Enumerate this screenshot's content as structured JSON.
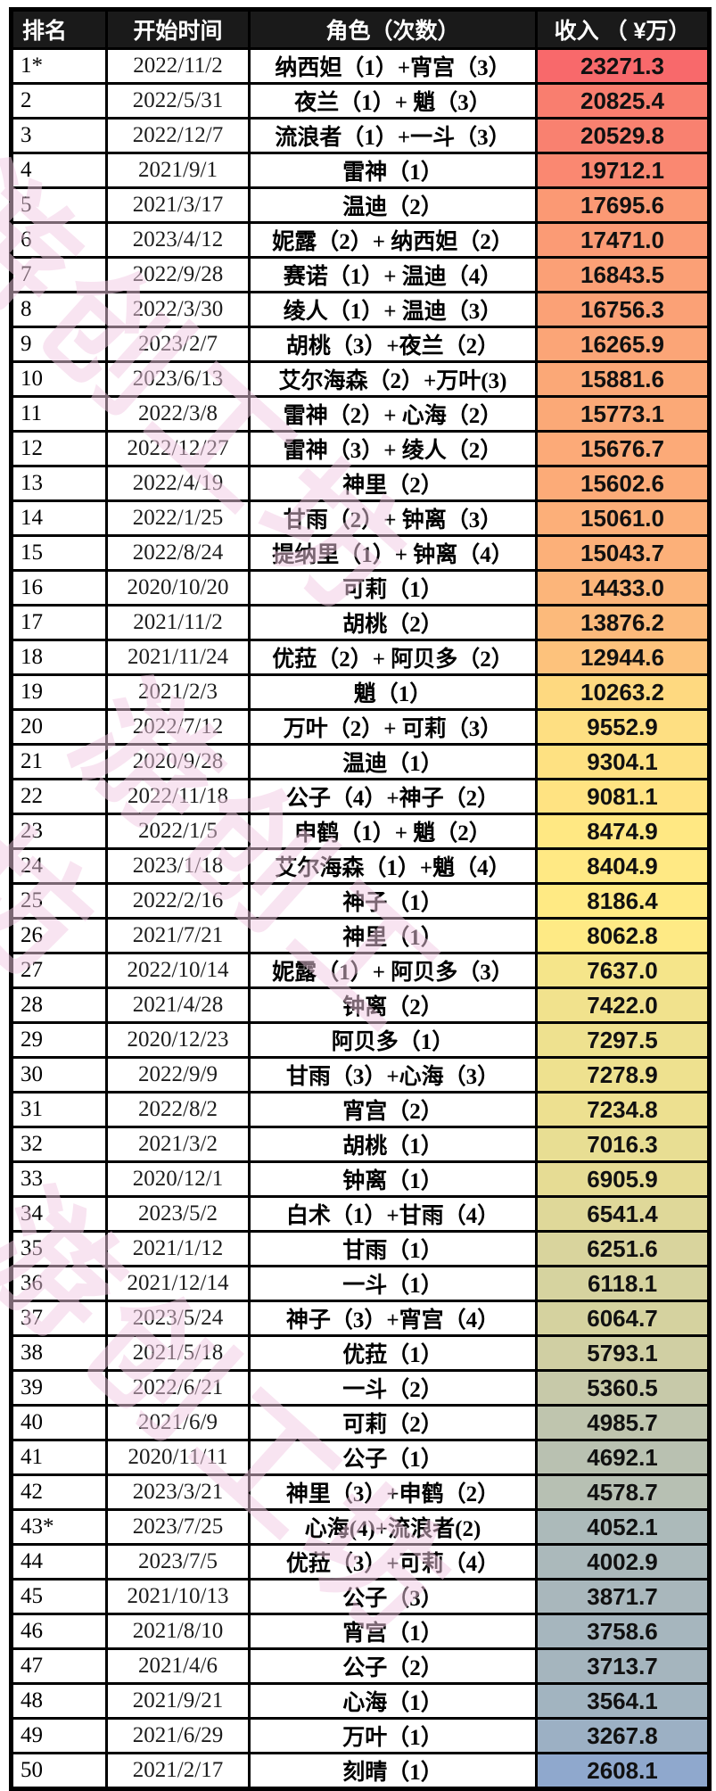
{
  "page": {
    "background": "#FFFFFF"
  },
  "watermark": {
    "text": "游创工坊",
    "color": "#F3CBE4"
  },
  "table": {
    "header_bg": "#1A1A1A",
    "header_text_color": "#FFFFFF",
    "columns": {
      "rank": "排名",
      "date": "开始时间",
      "role": "角色（次数）",
      "revenue": "收入 （ ¥万）"
    },
    "color_scale": {
      "max_color": "#F8696B",
      "mid_color": "#FFEB84",
      "min_color": "#8FA8CD",
      "midpoint": "median"
    }
  },
  "chart_data": {
    "type": "table",
    "title": "",
    "columns": [
      "排名",
      "开始时间",
      "角色（次数）",
      "收入 （ ¥万）"
    ],
    "rows": [
      {
        "rank": "1*",
        "date": "2022/11/2",
        "role": "纳西妲（1）+宵宫（3）",
        "revenue": 23271.3
      },
      {
        "rank": "2",
        "date": "2022/5/31",
        "role": "夜兰（1）+ 魈（3）",
        "revenue": 20825.4
      },
      {
        "rank": "3",
        "date": "2022/12/7",
        "role": "流浪者（1）+一斗（3）",
        "revenue": 20529.8
      },
      {
        "rank": "4",
        "date": "2021/9/1",
        "role": "雷神（1）",
        "revenue": 19712.1
      },
      {
        "rank": "5",
        "date": "2021/3/17",
        "role": "温迪（2）",
        "revenue": 17695.6
      },
      {
        "rank": "6",
        "date": "2023/4/12",
        "role": "妮露（2）+ 纳西妲（2）",
        "revenue": 17471.0
      },
      {
        "rank": "7",
        "date": "2022/9/28",
        "role": "赛诺（1）+ 温迪（4）",
        "revenue": 16843.5
      },
      {
        "rank": "8",
        "date": "2022/3/30",
        "role": "绫人（1）+ 温迪（3）",
        "revenue": 16756.3
      },
      {
        "rank": "9",
        "date": "2023/2/7",
        "role": "胡桃（3）+夜兰（2）",
        "revenue": 16265.9
      },
      {
        "rank": "10",
        "date": "2023/6/13",
        "role": "艾尔海森（2）+万叶(3)",
        "revenue": 15881.6
      },
      {
        "rank": "11",
        "date": "2022/3/8",
        "role": "雷神（2）+ 心海（2）",
        "revenue": 15773.1
      },
      {
        "rank": "12",
        "date": "2022/12/27",
        "role": "雷神（3）+ 绫人（2）",
        "revenue": 15676.7
      },
      {
        "rank": "13",
        "date": "2022/4/19",
        "role": "神里（2）",
        "revenue": 15602.6
      },
      {
        "rank": "14",
        "date": "2022/1/25",
        "role": "甘雨（2）+ 钟离（3）",
        "revenue": 15061.0
      },
      {
        "rank": "15",
        "date": "2022/8/24",
        "role": "提纳里（1）+ 钟离（4）",
        "revenue": 15043.7
      },
      {
        "rank": "16",
        "date": "2020/10/20",
        "role": "可莉（1）",
        "revenue": 14433.0
      },
      {
        "rank": "17",
        "date": "2021/11/2",
        "role": "胡桃（2）",
        "revenue": 13876.2
      },
      {
        "rank": "18",
        "date": "2021/11/24",
        "role": "优菈（2）+ 阿贝多（2）",
        "revenue": 12944.6
      },
      {
        "rank": "19",
        "date": "2021/2/3",
        "role": "魈（1）",
        "revenue": 10263.2
      },
      {
        "rank": "20",
        "date": "2022/7/12",
        "role": "万叶（2）+ 可莉（3）",
        "revenue": 9552.9
      },
      {
        "rank": "21",
        "date": "2020/9/28",
        "role": "温迪（1）",
        "revenue": 9304.1
      },
      {
        "rank": "22",
        "date": "2022/11/18",
        "role": "公子（4）+神子（2）",
        "revenue": 9081.1
      },
      {
        "rank": "23",
        "date": "2022/1/5",
        "role": "申鹤（1）+ 魈（2）",
        "revenue": 8474.9
      },
      {
        "rank": "24",
        "date": "2023/1/18",
        "role": "艾尔海森（1）+魈（4）",
        "revenue": 8404.9
      },
      {
        "rank": "25",
        "date": "2022/2/16",
        "role": "神子（1）",
        "revenue": 8186.4
      },
      {
        "rank": "26",
        "date": "2021/7/21",
        "role": "神里（1）",
        "revenue": 8062.8
      },
      {
        "rank": "27",
        "date": "2022/10/14",
        "role": "妮露（1）+ 阿贝多（3）",
        "revenue": 7637.0
      },
      {
        "rank": "28",
        "date": "2021/4/28",
        "role": "钟离（2）",
        "revenue": 7422.0
      },
      {
        "rank": "29",
        "date": "2020/12/23",
        "role": "阿贝多（1）",
        "revenue": 7297.5
      },
      {
        "rank": "30",
        "date": "2022/9/9",
        "role": "甘雨（3）+心海（3）",
        "revenue": 7278.9
      },
      {
        "rank": "31",
        "date": "2022/8/2",
        "role": "宵宫（2）",
        "revenue": 7234.8
      },
      {
        "rank": "32",
        "date": "2021/3/2",
        "role": "胡桃（1）",
        "revenue": 7016.3
      },
      {
        "rank": "33",
        "date": "2020/12/1",
        "role": "钟离（1）",
        "revenue": 6905.9
      },
      {
        "rank": "34",
        "date": "2023/5/2",
        "role": "白术（1）+甘雨（4）",
        "revenue": 6541.4
      },
      {
        "rank": "35",
        "date": "2021/1/12",
        "role": "甘雨（1）",
        "revenue": 6251.6
      },
      {
        "rank": "36",
        "date": "2021/12/14",
        "role": "一斗（1）",
        "revenue": 6118.1
      },
      {
        "rank": "37",
        "date": "2023/5/24",
        "role": "神子（3）+宵宫（4）",
        "revenue": 6064.7
      },
      {
        "rank": "38",
        "date": "2021/5/18",
        "role": "优菈（1）",
        "revenue": 5793.1
      },
      {
        "rank": "39",
        "date": "2022/6/21",
        "role": "一斗（2）",
        "revenue": 5360.5
      },
      {
        "rank": "40",
        "date": "2021/6/9",
        "role": "可莉（2）",
        "revenue": 4985.7
      },
      {
        "rank": "41",
        "date": "2020/11/11",
        "role": "公子（1）",
        "revenue": 4692.1
      },
      {
        "rank": "42",
        "date": "2023/3/21",
        "role": "神里（3）+申鹤（2）",
        "revenue": 4578.7
      },
      {
        "rank": "43*",
        "date": "2023/7/25",
        "role": "心海(4)+流浪者(2)",
        "revenue": 4052.1
      },
      {
        "rank": "44",
        "date": "2023/7/5",
        "role": "优菈（3）+可莉（4）",
        "revenue": 4002.9
      },
      {
        "rank": "45",
        "date": "2021/10/13",
        "role": "公子（3）",
        "revenue": 3871.7
      },
      {
        "rank": "46",
        "date": "2021/8/10",
        "role": "宵宫（1）",
        "revenue": 3758.6
      },
      {
        "rank": "47",
        "date": "2021/4/6",
        "role": "公子（2）",
        "revenue": 3713.7
      },
      {
        "rank": "48",
        "date": "2021/9/21",
        "role": "心海（1）",
        "revenue": 3564.1
      },
      {
        "rank": "49",
        "date": "2021/6/29",
        "role": "万叶（1）",
        "revenue": 3267.8
      },
      {
        "rank": "50",
        "date": "2021/2/17",
        "role": "刻晴（1）",
        "revenue": 2608.1
      }
    ]
  }
}
